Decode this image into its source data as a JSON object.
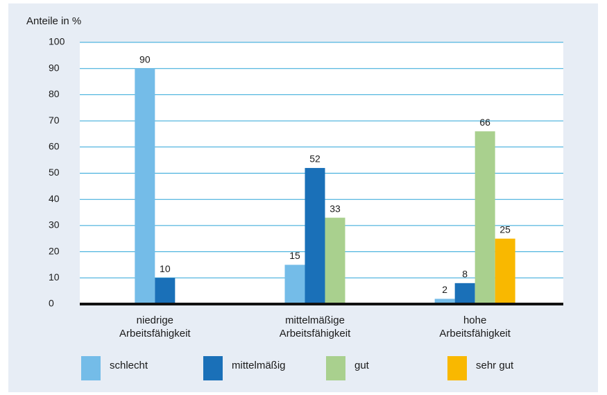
{
  "chart_data": {
    "type": "bar",
    "y_label": "Anteile in %",
    "categories": [
      "niedrige\nArbeitsfähigkeit",
      "mittelmäßige\nArbeitsfähigkeit",
      "hohe\nArbeitsfähigkeit"
    ],
    "series": [
      {
        "name": "schlecht",
        "color": "#74bce8",
        "values": [
          90,
          15,
          2
        ]
      },
      {
        "name": "mittelmäßig",
        "color": "#1a70b8",
        "values": [
          10,
          52,
          8
        ]
      },
      {
        "name": "gut",
        "color": "#a9d08e",
        "values": [
          null,
          33,
          66
        ]
      },
      {
        "name": "sehr gut",
        "color": "#f9b800",
        "values": [
          null,
          null,
          25
        ]
      }
    ],
    "ylim": [
      0,
      100
    ],
    "yticks": [
      0,
      10,
      20,
      30,
      40,
      50,
      60,
      70,
      80,
      90,
      100
    ],
    "grid": true
  }
}
